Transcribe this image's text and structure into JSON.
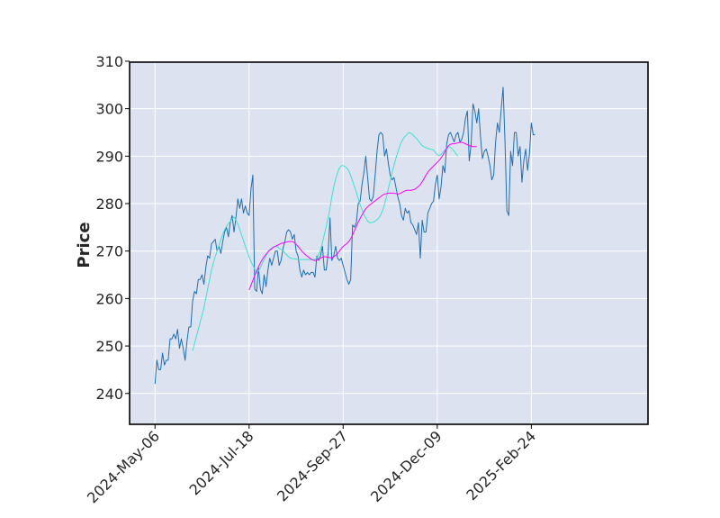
{
  "chart_data": {
    "type": "line",
    "title": "",
    "xlabel": "",
    "ylabel": "Price",
    "ylim": [
      233.5,
      309.8
    ],
    "yticks": [
      240,
      250,
      260,
      270,
      280,
      290,
      300,
      310
    ],
    "x_tick_labels": [
      "2024-May-06",
      "2024-Jul-18",
      "2024-Sep-27",
      "2024-Dec-09",
      "2025-Feb-24"
    ],
    "x_tick_index": [
      0,
      50,
      100,
      150,
      200
    ],
    "x_range": [
      -13.5,
      262
    ],
    "grid": true,
    "background": "#dce2ef",
    "colors": {
      "close": "#1f6fb2",
      "ma_short": "#40e0d0",
      "ma_long": "#ff00ff"
    },
    "series": [
      {
        "key": "close",
        "start_index": 0,
        "values": [
          242.0,
          247.0,
          245.0,
          245.0,
          248.5,
          246.0,
          247.0,
          247.0,
          251.5,
          251.5,
          252.5,
          251.5,
          253.5,
          249.5,
          251.5,
          249.5,
          247.0,
          251.0,
          254.0,
          254.0,
          259.5,
          261.5,
          261.0,
          264.0,
          264.0,
          265.0,
          263.0,
          266.5,
          269.0,
          268.5,
          271.5,
          272.0,
          272.5,
          270.0,
          271.0,
          269.5,
          272.0,
          274.0,
          275.0,
          273.0,
          276.0,
          277.5,
          274.0,
          277.0,
          281.0,
          279.0,
          281.0,
          278.0,
          279.5,
          278.0,
          277.5,
          283.0,
          286.0,
          262.0,
          261.5,
          266.5,
          262.0,
          261.0,
          265.0,
          262.5,
          266.0,
          268.5,
          267.0,
          268.5,
          270.0,
          270.0,
          267.0,
          268.0,
          270.5,
          272.0,
          274.0,
          274.5,
          274.0,
          272.5,
          273.5,
          270.0,
          269.0,
          266.0,
          264.5,
          266.0,
          265.0,
          265.5,
          265.0,
          265.5,
          265.5,
          264.5,
          269.0,
          268.0,
          269.0,
          271.0,
          266.0,
          266.0,
          269.5,
          277.0,
          268.0,
          269.0,
          271.0,
          268.5,
          268.0,
          268.5,
          267.0,
          265.5,
          264.0,
          263.0,
          264.0,
          275.5,
          275.0,
          276.0,
          280.0,
          280.5,
          284.0,
          286.5,
          290.0,
          285.5,
          281.0,
          280.5,
          281.5,
          286.0,
          291.0,
          294.5,
          295.0,
          294.5,
          290.0,
          291.5,
          288.5,
          286.0,
          285.0,
          285.5,
          283.5,
          281.5,
          280.0,
          277.5,
          276.5,
          279.0,
          278.0,
          278.5,
          276.0,
          275.5,
          274.5,
          273.5,
          276.0,
          268.5,
          276.5,
          274.0,
          274.0,
          278.0,
          279.0,
          280.0,
          280.5,
          284.0,
          286.0,
          281.0,
          283.5,
          288.0,
          286.5,
          292.5,
          294.5,
          295.0,
          294.0,
          293.0,
          294.5,
          295.0,
          293.0,
          293.5,
          295.0,
          298.0,
          299.5,
          289.0,
          292.5,
          301.0,
          299.5,
          297.0,
          300.0,
          294.0,
          289.5,
          291.0,
          291.5,
          290.0,
          288.0,
          285.0,
          286.0,
          293.0,
          297.0,
          295.0,
          300.0,
          304.5,
          293.0,
          278.5,
          277.5,
          291.0,
          288.0,
          295.0,
          295.0,
          290.0,
          292.0,
          284.5,
          289.0,
          291.5,
          287.0,
          290.5,
          297.0,
          294.5,
          294.5
        ]
      },
      {
        "key": "ma_short",
        "start_index": 20,
        "values": [
          249.0,
          250.5,
          252.0,
          253.5,
          255.0,
          256.5,
          258.0,
          260.0,
          262.0,
          264.0,
          266.0,
          267.5,
          268.8,
          270.0,
          271.2,
          272.5,
          273.5,
          274.5,
          275.2,
          275.8,
          276.2,
          276.8,
          277.2,
          276.5,
          275.7,
          274.6,
          273.4,
          272.3,
          271.0,
          269.9,
          268.8,
          267.8,
          267.0,
          266.2,
          265.4,
          265.8,
          266.6,
          267.4,
          268.2,
          269.0,
          269.8,
          270.3,
          270.6,
          270.9,
          271.0,
          270.9,
          270.6,
          270.3,
          270.0,
          269.6,
          269.2,
          268.8,
          268.5,
          268.4,
          268.4,
          268.3,
          268.2,
          268.2,
          268.2,
          268.2,
          268.2,
          268.2,
          268.2,
          268.2,
          268.2,
          268.2,
          268.6,
          269.3,
          270.3,
          271.8,
          273.5,
          275.2,
          277.0,
          279.0,
          281.5,
          283.5,
          285.2,
          286.5,
          287.5,
          288.0,
          288.0,
          287.8,
          287.5,
          286.9,
          285.9,
          284.8,
          283.6,
          282.4,
          281.1,
          279.8,
          278.7,
          277.7,
          277.0,
          276.3,
          276.0,
          276.0,
          276.1,
          276.3,
          276.6,
          277.0,
          277.7,
          278.6,
          279.9,
          281.4,
          283.1,
          284.8,
          286.5,
          288.0,
          289.5,
          290.8,
          292.0,
          293.0,
          293.7,
          294.2,
          294.6,
          295.0,
          294.8,
          294.5,
          294.1,
          293.7,
          293.2,
          292.7,
          292.2,
          292.0,
          291.8,
          291.6,
          291.5,
          291.4,
          291.3,
          290.8,
          290.3,
          290.1,
          290.4,
          290.8,
          291.3,
          291.7,
          292.0,
          291.9,
          291.5,
          291.0,
          290.5,
          290.0
        ]
      },
      {
        "key": "ma_long",
        "start_index": 50,
        "values": [
          261.8,
          262.8,
          263.8,
          264.8,
          265.8,
          266.7,
          267.5,
          268.2,
          268.8,
          269.3,
          269.8,
          270.2,
          270.5,
          270.8,
          271.0,
          271.2,
          271.4,
          271.6,
          271.7,
          271.8,
          271.9,
          272.0,
          272.0,
          272.0,
          271.8,
          271.4,
          271.0,
          270.5,
          270.0,
          269.6,
          269.2,
          268.9,
          268.6,
          268.3,
          268.1,
          268.0,
          268.1,
          268.3,
          268.5,
          268.7,
          268.8,
          268.8,
          268.7,
          268.6,
          268.6,
          268.8,
          269.1,
          269.5,
          270.0,
          270.5,
          271.0,
          271.3,
          271.6,
          272.0,
          272.6,
          273.4,
          274.3,
          275.2,
          276.1,
          276.9,
          277.6,
          278.3,
          278.9,
          279.3,
          279.7,
          280.0,
          280.3,
          280.6,
          280.9,
          281.2,
          281.5,
          281.8,
          282.0,
          282.1,
          282.2,
          282.2,
          282.2,
          282.2,
          282.1,
          282.0,
          282.1,
          282.3,
          282.5,
          282.7,
          282.8,
          282.8,
          282.8,
          282.9,
          283.0,
          283.3,
          283.6,
          284.0,
          284.6,
          285.3,
          286.0,
          286.6,
          287.1,
          287.5,
          287.9,
          288.3,
          288.7,
          289.1,
          289.6,
          290.2,
          290.9,
          291.6,
          292.2,
          292.5,
          292.6,
          292.6,
          292.7,
          292.8,
          292.9,
          292.9,
          292.8,
          292.6,
          292.4,
          292.2,
          292.1,
          292.0,
          292.0,
          292.0
        ]
      }
    ]
  }
}
